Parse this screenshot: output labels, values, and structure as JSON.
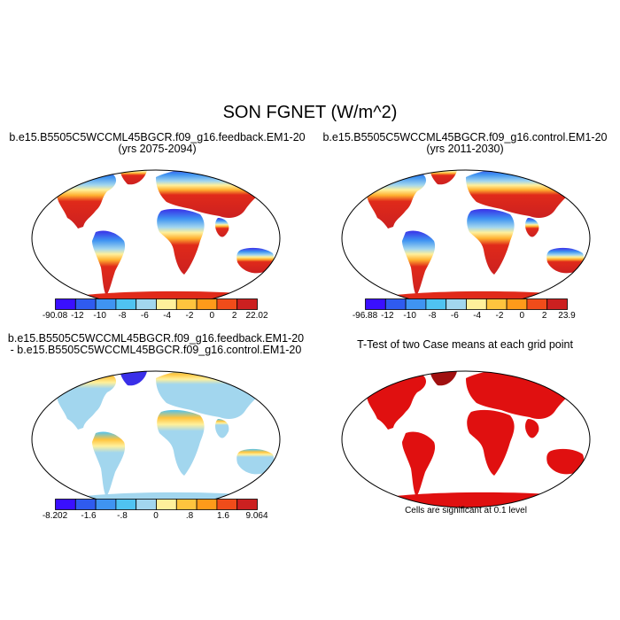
{
  "figure": {
    "title": "SON FGNET (W/m^2)"
  },
  "panels": {
    "top_left": {
      "title_line1": "b.e15.B5505C5WCCML45BGCR.f09_g16.feedback.EM1-20",
      "title_line2": "(yrs 2075-2094)",
      "colorbar": {
        "labels": [
          "-90.08",
          "-12",
          "-10",
          "-8",
          "-6",
          "-4",
          "-2",
          "0",
          "2",
          "22.02"
        ],
        "colors": [
          "#3a0fff",
          "#2f5bef",
          "#3f94f2",
          "#4fc3f2",
          "#a2d6ee",
          "#fff09b",
          "#ffc43e",
          "#ff9a1a",
          "#f04c1a",
          "#cc2020"
        ]
      }
    },
    "top_right": {
      "title_line1": "b.e15.B5505C5WCCML45BGCR.f09_g16.control.EM1-20",
      "title_line2": "(yrs 2011-2030)",
      "colorbar": {
        "labels": [
          "-96.88",
          "-12",
          "-10",
          "-8",
          "-6",
          "-4",
          "-2",
          "0",
          "2",
          "23.9"
        ],
        "colors": [
          "#3a0fff",
          "#2f5bef",
          "#3f94f2",
          "#4fc3f2",
          "#a2d6ee",
          "#fff09b",
          "#ffc43e",
          "#ff9a1a",
          "#f04c1a",
          "#cc2020"
        ]
      }
    },
    "bottom_left": {
      "title_line1": "b.e15.B5505C5WCCML45BGCR.f09_g16.feedback.EM1-20",
      "title_line2": "- b.e15.B5505C5WCCML45BGCR.f09_g16.control.EM1-20",
      "colorbar": {
        "labels": [
          "-8.202",
          "-1.6",
          "-.8",
          "0",
          ".8",
          "1.6",
          "9.064"
        ],
        "colors": [
          "#3a0fff",
          "#2f5bef",
          "#3f94f2",
          "#4fc3f2",
          "#a2d6ee",
          "#fff09b",
          "#ffc43e",
          "#ff9a1a",
          "#f04c1a",
          "#cc2020"
        ]
      }
    },
    "bottom_right": {
      "title": "T-Test of two Case means at each grid point",
      "note": "Cells are significant at 0.1 level",
      "fill_color": "#e01010"
    }
  }
}
